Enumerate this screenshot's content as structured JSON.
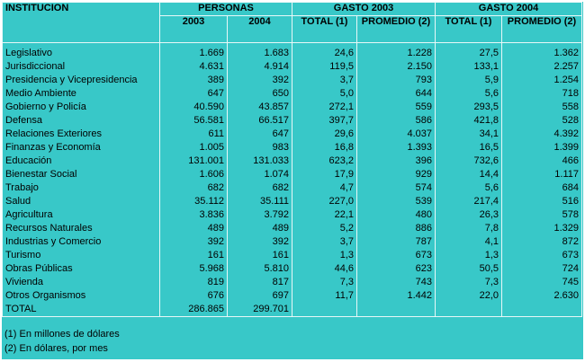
{
  "header": {
    "first_column": "INSTITUCION",
    "groups": [
      {
        "title": "PERSONAS",
        "columns": [
          "2003",
          "2004"
        ]
      },
      {
        "title": "GASTO 2003",
        "columns": [
          "TOTAL (1)",
          "PROMEDIO (2)"
        ]
      },
      {
        "title": "GASTO 2004",
        "columns": [
          "TOTAL (1)",
          "PROMEDIO (2)"
        ]
      }
    ]
  },
  "table": {
    "rows": [
      [
        "Legislativo",
        "1.669",
        "1.683",
        "24,6",
        "1.228",
        "27,5",
        "1.362"
      ],
      [
        "Jurisdiccional",
        "4.631",
        "4.914",
        "119,5",
        "2.150",
        "133,1",
        "2.257"
      ],
      [
        "Presidencia y Vicepresidencia",
        "389",
        "392",
        "3,7",
        "793",
        "5,9",
        "1.254"
      ],
      [
        "Medio Ambiente",
        "647",
        "650",
        "5,0",
        "644",
        "5,6",
        "718"
      ],
      [
        "Gobierno y Policía",
        "40.590",
        "43.857",
        "272,1",
        "559",
        "293,5",
        "558"
      ],
      [
        "Defensa",
        "56.581",
        "66.517",
        "397,7",
        "586",
        "421,8",
        "528"
      ],
      [
        "Relaciones Exteriores",
        "611",
        "647",
        "29,6",
        "4.037",
        "34,1",
        "4.392"
      ],
      [
        "Finanzas y Economía",
        "1.005",
        "983",
        "16,8",
        "1.393",
        "16,5",
        "1.399"
      ],
      [
        "Educación",
        "131.001",
        "131.033",
        "623,2",
        "396",
        "732,6",
        "466"
      ],
      [
        "Bienestar Social",
        "1.606",
        "1.074",
        "17,9",
        "929",
        "14,4",
        "1.117"
      ],
      [
        "Trabajo",
        "682",
        "682",
        "4,7",
        "574",
        "5,6",
        "684"
      ],
      [
        "Salud",
        "35.112",
        "35.111",
        "227,0",
        "539",
        "217,4",
        "516"
      ],
      [
        "Agricultura",
        "3.836",
        "3.792",
        "22,1",
        "480",
        "26,3",
        "578"
      ],
      [
        "Recursos Naturales",
        "489",
        "489",
        "5,2",
        "886",
        "7,8",
        "1.329"
      ],
      [
        "Industrias y Comercio",
        "392",
        "392",
        "3,7",
        "787",
        "4,1",
        "872"
      ],
      [
        "Turismo",
        "161",
        "161",
        "1,3",
        "673",
        "1,3",
        "673"
      ],
      [
        "Obras Públicas",
        "5.968",
        "5.810",
        "44,6",
        "623",
        "50,5",
        "724"
      ],
      [
        "Vivienda",
        "819",
        "817",
        "7,3",
        "743",
        "7,3",
        "745"
      ],
      [
        "Otros Organismos",
        "676",
        "697",
        "11,7",
        "1.442",
        "22,0",
        "2.630"
      ],
      [
        "TOTAL",
        "286.865",
        "299.701"
      ]
    ]
  },
  "footnotes": [
    "(1) En millones de dólares",
    "(2) En dólares, por mes"
  ]
}
